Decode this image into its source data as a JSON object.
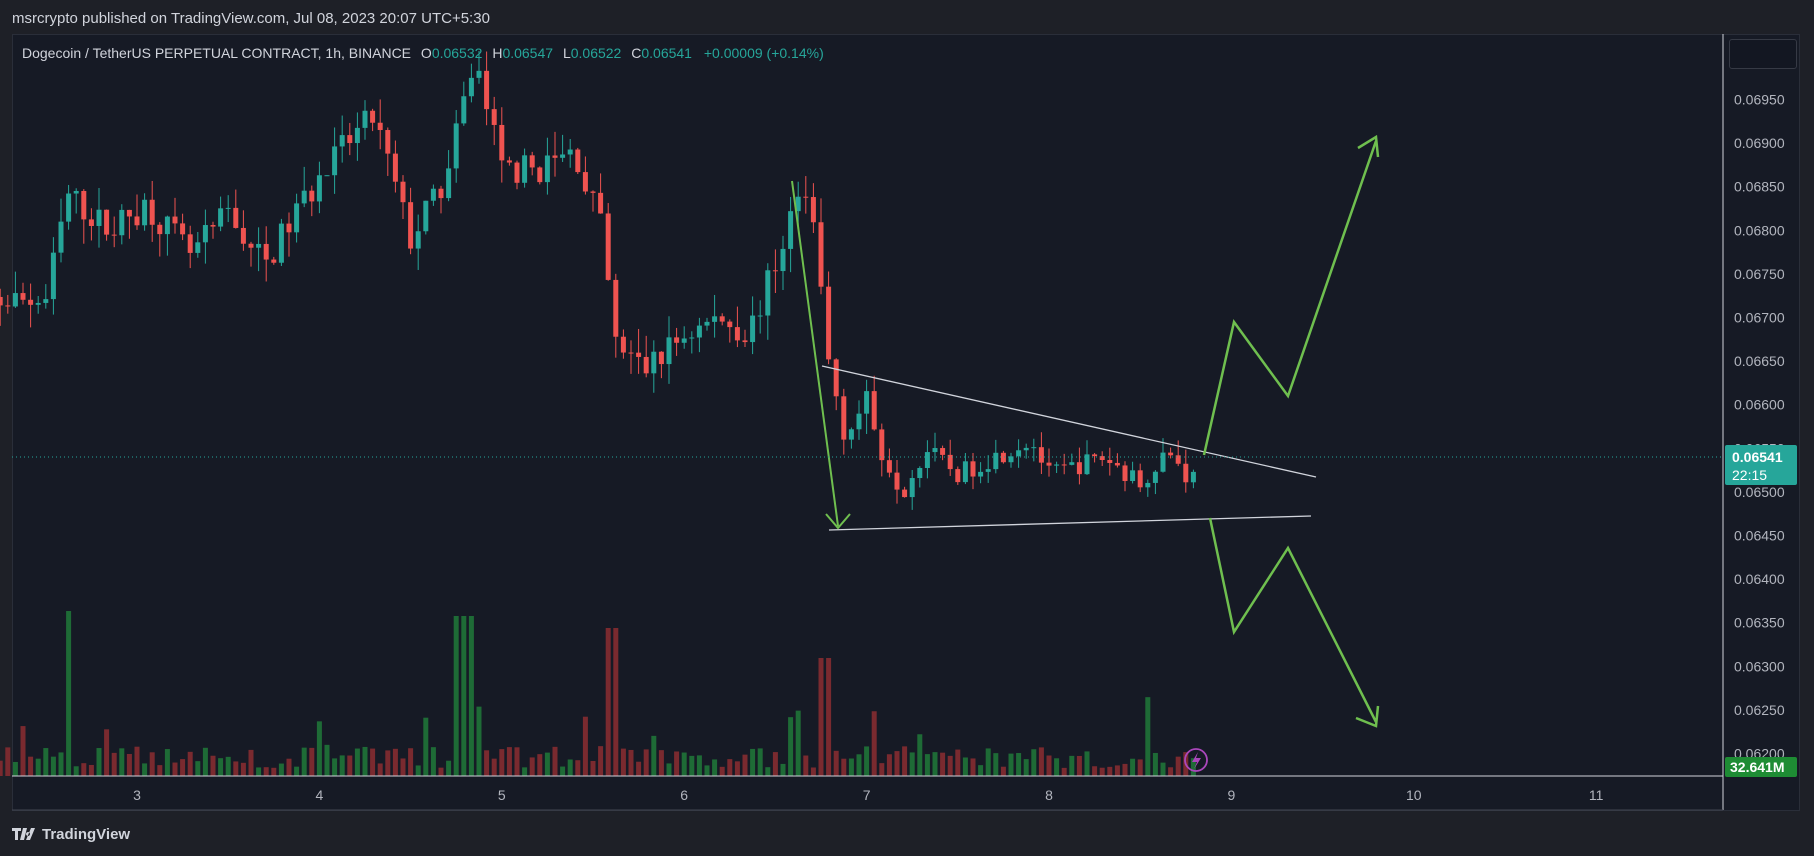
{
  "header": {
    "published_by": "msrcrypto published on TradingView.com, Jul 08, 2023 20:07 UTC+5:30"
  },
  "legend": {
    "symbol": "Dogecoin / TetherUS PERPETUAL CONTRACT, 1h, BINANCE",
    "o_label": "O",
    "o_value": "0.06532",
    "h_label": "H",
    "h_value": "0.06547",
    "l_label": "L",
    "l_value": "0.06522",
    "c_label": "C",
    "c_value": "0.06541",
    "change": "+0.00009 (+0.14%)"
  },
  "footer": {
    "brand": "TradingView"
  },
  "colors": {
    "up": "#26a69a",
    "down": "#ef5350",
    "vol_up": "#1e6b36",
    "vol_down": "#7a2a2f",
    "drawing": "#6fbf4f",
    "trendline": "#d1d4dc",
    "price_tag": "#26a69a",
    "volume_tag": "#1e8c34",
    "alert_icon": "#ab47bc"
  },
  "chart_data": {
    "type": "candlestick",
    "interval": "1h",
    "symbol": "Dogecoin / TetherUS PERPETUAL CONTRACT",
    "exchange": "BINANCE",
    "x_ticks": [
      "3",
      "4",
      "5",
      "6",
      "7",
      "8",
      "9",
      "10",
      "11"
    ],
    "y_ticks": [
      "0.06200",
      "0.06250",
      "0.06300",
      "0.06350",
      "0.06400",
      "0.06450",
      "0.06500",
      "0.06550",
      "0.06600",
      "0.06650",
      "0.06700",
      "0.06750",
      "0.06800",
      "0.06850",
      "0.06900",
      "0.06950"
    ],
    "ylim": [
      0.0618,
      0.0699
    ],
    "grid": false,
    "last_price": "0.06541",
    "countdown": "22:15",
    "volume_label": "32.641M",
    "keypoints": [
      {
        "t": 2.0,
        "p": 0.0671
      },
      {
        "t": 2.3,
        "p": 0.0672
      },
      {
        "t": 2.5,
        "p": 0.0672
      },
      {
        "t": 2.62,
        "p": 0.0684
      },
      {
        "t": 2.85,
        "p": 0.068
      },
      {
        "t": 3.05,
        "p": 0.0683
      },
      {
        "t": 3.3,
        "p": 0.0677
      },
      {
        "t": 3.5,
        "p": 0.0682
      },
      {
        "t": 3.7,
        "p": 0.0676
      },
      {
        "t": 3.9,
        "p": 0.0683
      },
      {
        "t": 4.15,
        "p": 0.069
      },
      {
        "t": 4.3,
        "p": 0.0693
      },
      {
        "t": 4.5,
        "p": 0.0679
      },
      {
        "t": 4.7,
        "p": 0.0686
      },
      {
        "t": 4.85,
        "p": 0.07
      },
      {
        "t": 5.0,
        "p": 0.0687
      },
      {
        "t": 5.2,
        "p": 0.0687
      },
      {
        "t": 5.4,
        "p": 0.0689
      },
      {
        "t": 5.55,
        "p": 0.068
      },
      {
        "t": 5.62,
        "p": 0.0667
      },
      {
        "t": 5.78,
        "p": 0.0664
      },
      {
        "t": 6.0,
        "p": 0.0668
      },
      {
        "t": 6.2,
        "p": 0.067
      },
      {
        "t": 6.35,
        "p": 0.0668
      },
      {
        "t": 6.5,
        "p": 0.0676
      },
      {
        "t": 6.62,
        "p": 0.0684
      },
      {
        "t": 6.72,
        "p": 0.068
      },
      {
        "t": 6.78,
        "p": 0.0666
      },
      {
        "t": 6.88,
        "p": 0.0657
      },
      {
        "t": 7.0,
        "p": 0.066
      },
      {
        "t": 7.1,
        "p": 0.0654
      },
      {
        "t": 7.2,
        "p": 0.065
      },
      {
        "t": 7.32,
        "p": 0.0655
      },
      {
        "t": 7.5,
        "p": 0.0652
      },
      {
        "t": 7.7,
        "p": 0.0654
      },
      {
        "t": 7.9,
        "p": 0.0656
      },
      {
        "t": 8.0,
        "p": 0.0652
      },
      {
        "t": 8.15,
        "p": 0.0653
      },
      {
        "t": 8.3,
        "p": 0.0654
      },
      {
        "t": 8.5,
        "p": 0.0651
      },
      {
        "t": 8.65,
        "p": 0.0655
      },
      {
        "t": 8.78,
        "p": 0.0651
      },
      {
        "t": 8.82,
        "p": 0.0654
      }
    ]
  }
}
